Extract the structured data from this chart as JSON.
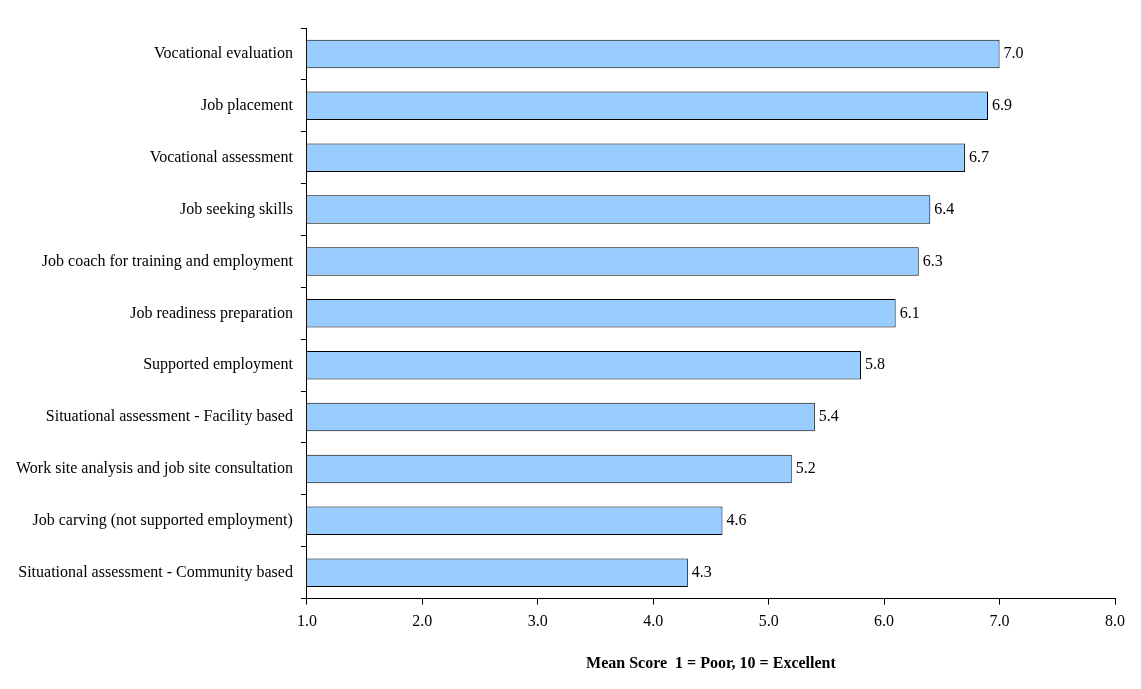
{
  "chart_data": {
    "type": "bar",
    "orientation": "horizontal",
    "xlabel": "Mean Score  1 = Poor, 10 = Excellent",
    "categories": [
      "Vocational evaluation",
      "Job placement",
      "Vocational assessment",
      "Job seeking skills",
      "Job coach for training and employment",
      "Job readiness preparation",
      "Supported employment",
      "Situational assessment - Facility based",
      "Work site analysis and job site consultation",
      "Job carving (not supported employment)",
      "Situational assessment - Community based"
    ],
    "values": [
      7.0,
      6.9,
      6.7,
      6.4,
      6.3,
      6.1,
      5.8,
      5.4,
      5.2,
      4.6,
      4.3
    ],
    "value_labels": [
      "7.0",
      "6.9",
      "6.7",
      "6.4",
      "6.3",
      "6.1",
      "5.8",
      "5.4",
      "5.2",
      "4.6",
      "4.3"
    ],
    "color": "#99ccff",
    "xlim": [
      1,
      8
    ],
    "xticks": [
      {
        "value": 1,
        "label": "1.0"
      },
      {
        "value": 2,
        "label": "2.0"
      },
      {
        "value": 3,
        "label": "3.0"
      },
      {
        "value": 4,
        "label": "4.0"
      },
      {
        "value": 5,
        "label": "5.0"
      },
      {
        "value": 6,
        "label": "6.0"
      },
      {
        "value": 7,
        "label": "7.0"
      },
      {
        "value": 8,
        "label": "8.0"
      }
    ],
    "grid": false,
    "legend": false
  }
}
